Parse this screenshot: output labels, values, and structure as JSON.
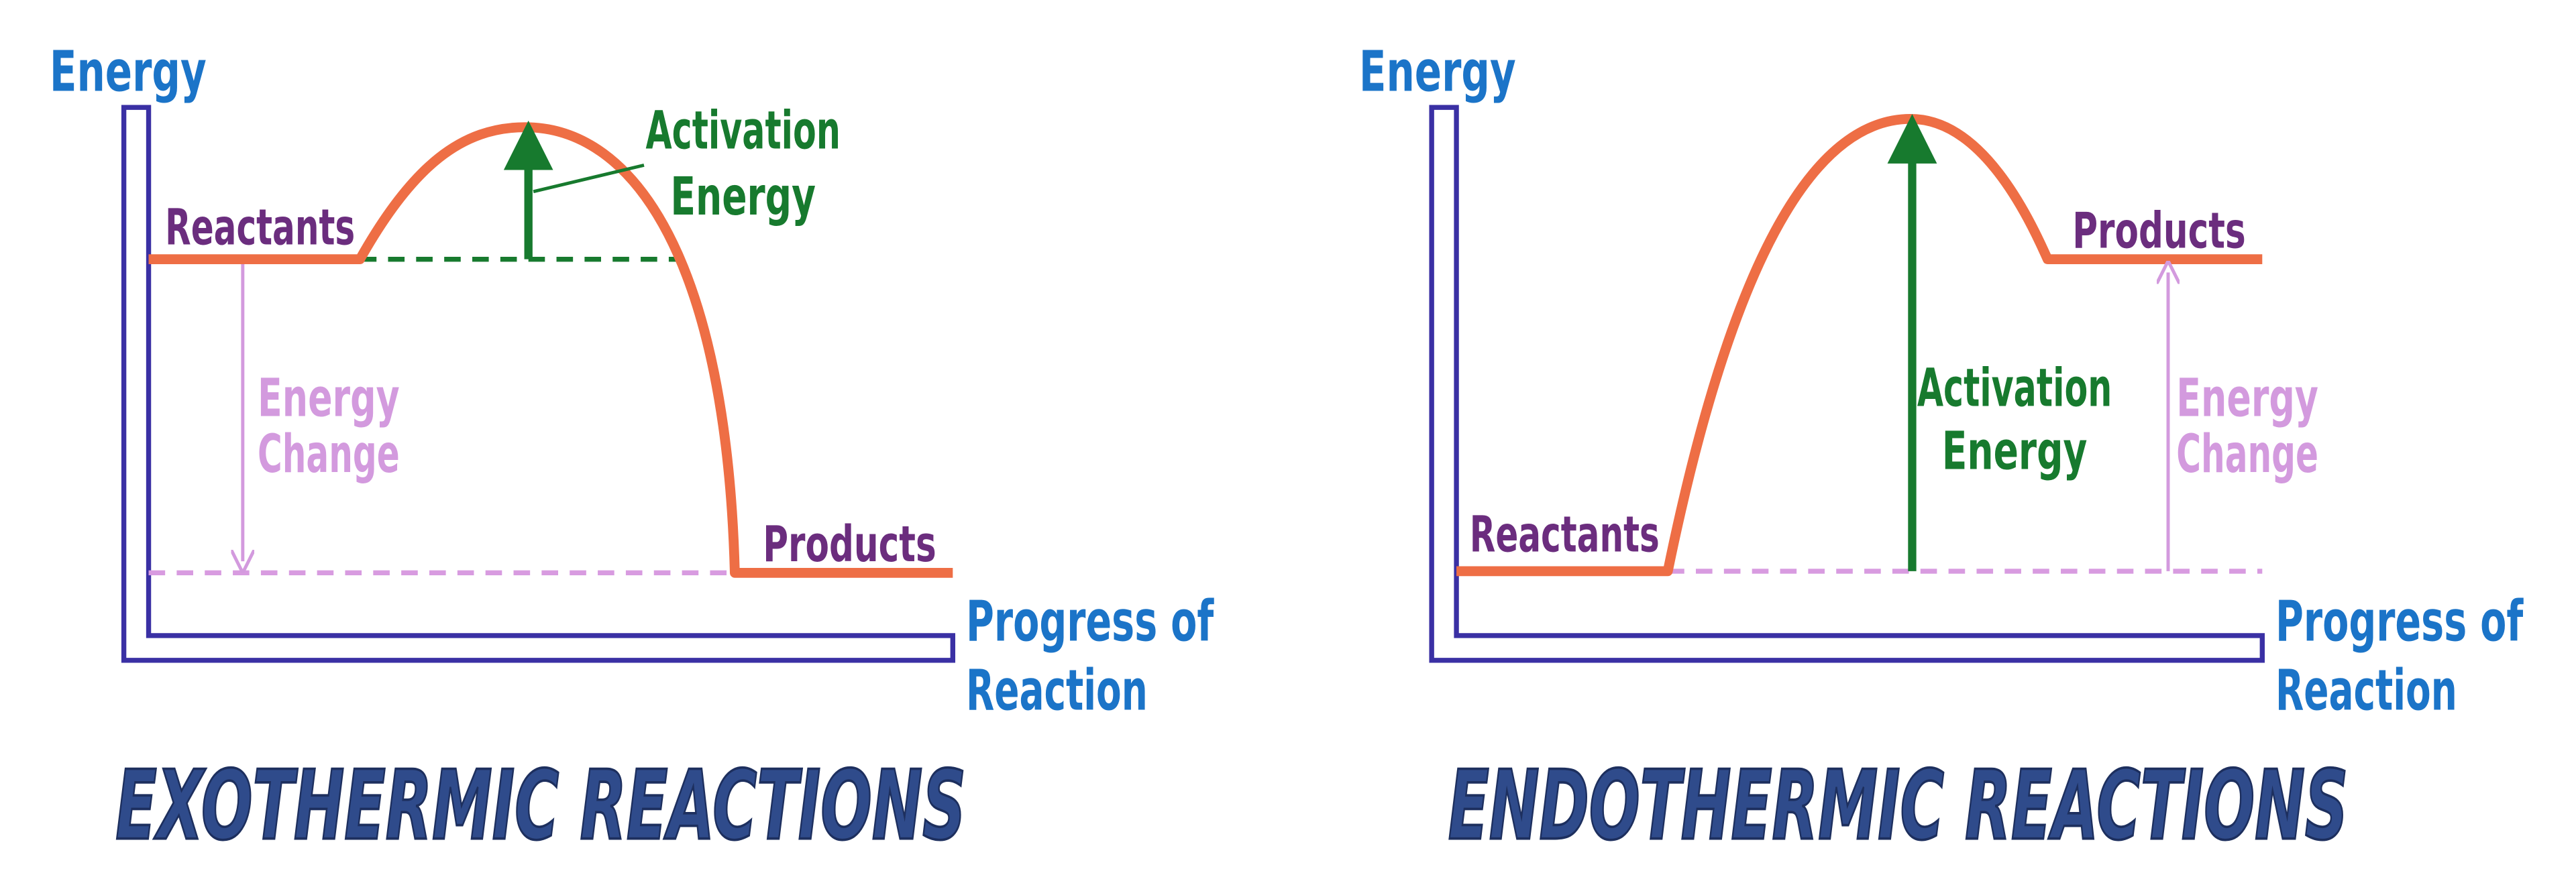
{
  "diagrams": [
    {
      "title": "EXOTHERMIC REACTIONS",
      "y_axis": "Energy",
      "x_axis": [
        "Progress of",
        "Reaction"
      ],
      "reactants": "Reactants",
      "products": "Products",
      "activation_energy": [
        "Activation",
        "Energy"
      ],
      "energy_change": [
        "Energy",
        "Change"
      ]
    },
    {
      "title": "ENDOTHERMIC REACTIONS",
      "y_axis": "Energy",
      "x_axis": [
        "Progress of",
        "Reaction"
      ],
      "reactants": "Reactants",
      "products": "Products",
      "activation_energy": [
        "Activation",
        "Energy"
      ],
      "energy_change": [
        "Energy",
        "Change"
      ]
    }
  ]
}
